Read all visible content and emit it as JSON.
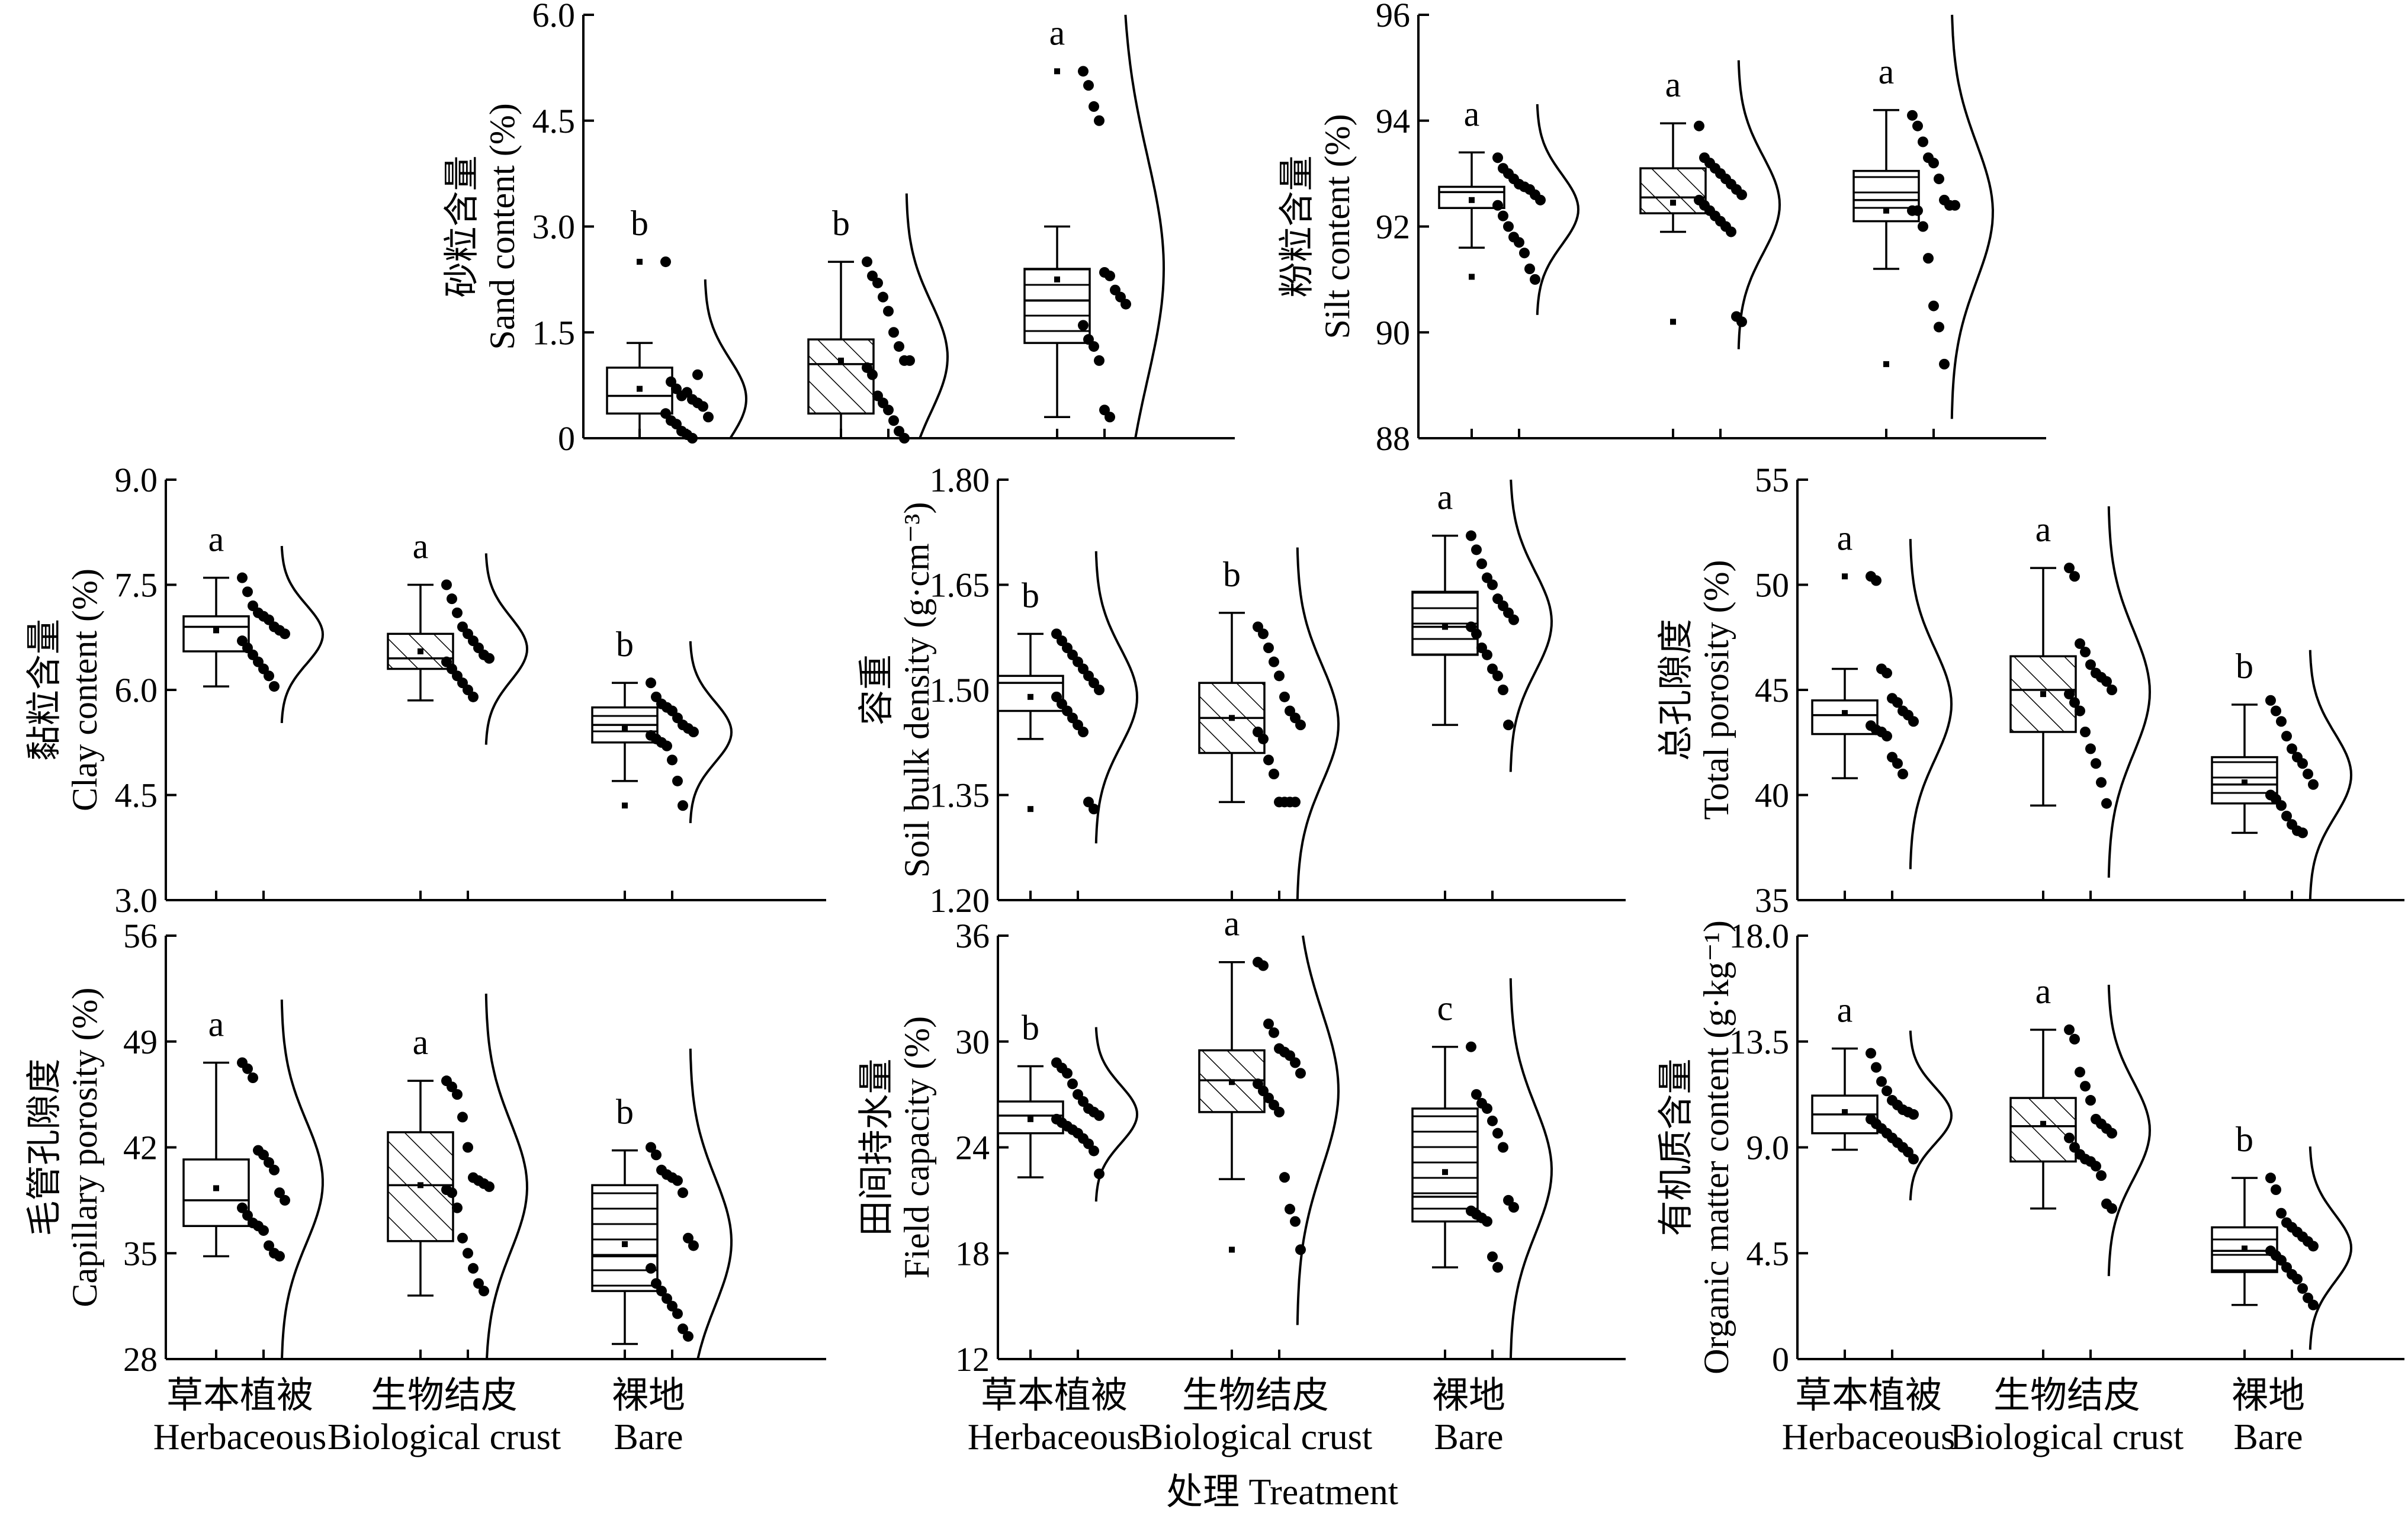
{
  "figure": {
    "xlabel": "处理 Treatment",
    "groups": [
      {
        "zh": "草本植被",
        "en": "Herbaceous",
        "fill": "none"
      },
      {
        "zh": "生物结皮",
        "en": "Biological crust",
        "fill": "diagonal"
      },
      {
        "zh": "裸地",
        "en": "Bare",
        "fill": "horizontal"
      }
    ]
  },
  "chart_data": [
    {
      "id": "sand",
      "type": "box",
      "ylabel_zh": "砂粒含量",
      "ylabel_en": "Sand content (%)",
      "ylim": [
        0,
        6.0
      ],
      "yticks": [
        "0",
        "1.5",
        "3.0",
        "4.5",
        "6.0"
      ],
      "categories": [
        "Herbaceous",
        "Biological crust",
        "Bare"
      ],
      "boxes": [
        {
          "whisker_low": 0.0,
          "q1": 0.35,
          "median": 0.6,
          "q3": 1.0,
          "whisker_high": 1.35,
          "mean": 0.7,
          "outliers": [
            2.5
          ]
        },
        {
          "whisker_low": 0.0,
          "q1": 0.35,
          "median": 1.05,
          "q3": 1.4,
          "whisker_high": 2.5,
          "mean": 1.1,
          "outliers": []
        },
        {
          "whisker_low": 0.3,
          "q1": 1.35,
          "median": 1.95,
          "q3": 2.4,
          "whisker_high": 3.0,
          "mean": 2.25,
          "outliers": [
            5.2
          ]
        }
      ],
      "points": [
        [
          2.5,
          0.8,
          0.7,
          0.6,
          0.65,
          0.55,
          0.5,
          0.45,
          0.3,
          0.35,
          0.25,
          0.2,
          0.1,
          0.05,
          0.0,
          0.9
        ],
        [
          2.5,
          2.3,
          2.2,
          2.0,
          1.8,
          1.5,
          1.3,
          1.1,
          1.1,
          1.0,
          0.9,
          0.6,
          0.5,
          0.4,
          0.25,
          0.1,
          0.0
        ],
        [
          5.2,
          5.0,
          4.7,
          4.5,
          2.35,
          2.3,
          2.1,
          2.0,
          1.9,
          1.6,
          1.4,
          1.3,
          1.1,
          0.4,
          0.3
        ]
      ],
      "letters": [
        "b",
        "b",
        "a"
      ]
    },
    {
      "id": "silt",
      "type": "box",
      "ylabel_zh": "粉粒含量",
      "ylabel_en": "Silt content (%)",
      "ylim": [
        88,
        96
      ],
      "yticks": [
        "88",
        "90",
        "92",
        "94",
        "96"
      ],
      "categories": [
        "Herbaceous",
        "Biological crust",
        "Bare"
      ],
      "boxes": [
        {
          "whisker_low": 91.6,
          "q1": 92.35,
          "median": 92.65,
          "q3": 92.75,
          "whisker_high": 93.4,
          "mean": 92.5,
          "outliers": [
            91.05
          ]
        },
        {
          "whisker_low": 91.9,
          "q1": 92.25,
          "median": 92.55,
          "q3": 93.1,
          "whisker_high": 93.95,
          "mean": 92.45,
          "outliers": [
            90.2
          ]
        },
        {
          "whisker_low": 91.2,
          "q1": 92.1,
          "median": 92.5,
          "q3": 93.05,
          "whisker_high": 94.2,
          "mean": 92.3,
          "outliers": [
            89.4
          ]
        }
      ],
      "points": [
        [
          93.3,
          93.1,
          93.0,
          92.9,
          92.8,
          92.75,
          92.7,
          92.6,
          92.5,
          92.4,
          92.2,
          92.0,
          91.8,
          91.7,
          91.5,
          91.2,
          91.0
        ],
        [
          93.9,
          93.3,
          93.2,
          93.1,
          93.0,
          92.9,
          92.8,
          92.7,
          92.6,
          92.5,
          92.4,
          92.3,
          92.2,
          92.1,
          92.0,
          91.9,
          90.3,
          90.2
        ],
        [
          94.1,
          93.9,
          93.6,
          93.3,
          93.2,
          92.9,
          92.5,
          92.4,
          92.4,
          92.3,
          92.3,
          92.0,
          91.4,
          90.5,
          90.1,
          89.4
        ]
      ],
      "letters": [
        "a",
        "a",
        "a"
      ]
    },
    {
      "id": "clay",
      "type": "box",
      "ylabel_zh": "黏粒含量",
      "ylabel_en": "Clay content (%)",
      "ylim": [
        3.0,
        9.0
      ],
      "yticks": [
        "3.0",
        "4.5",
        "6.0",
        "7.5",
        "9.0"
      ],
      "categories": [
        "Herbaceous",
        "Biological crust",
        "Bare"
      ],
      "boxes": [
        {
          "whisker_low": 6.05,
          "q1": 6.55,
          "median": 6.9,
          "q3": 7.05,
          "whisker_high": 7.6,
          "mean": 6.85,
          "outliers": []
        },
        {
          "whisker_low": 5.85,
          "q1": 6.3,
          "median": 6.45,
          "q3": 6.8,
          "whisker_high": 7.5,
          "mean": 6.55,
          "outliers": []
        },
        {
          "whisker_low": 4.7,
          "q1": 5.25,
          "median": 5.5,
          "q3": 5.75,
          "whisker_high": 6.1,
          "mean": 5.45,
          "outliers": [
            4.35
          ]
        }
      ],
      "points": [
        [
          7.6,
          7.4,
          7.2,
          7.1,
          7.05,
          7.0,
          6.9,
          6.85,
          6.8,
          6.7,
          6.6,
          6.5,
          6.4,
          6.3,
          6.2,
          6.05
        ],
        [
          7.5,
          7.3,
          7.1,
          6.9,
          6.8,
          6.7,
          6.6,
          6.5,
          6.45,
          6.4,
          6.3,
          6.2,
          6.1,
          6.0,
          5.9
        ],
        [
          6.1,
          5.9,
          5.8,
          5.75,
          5.7,
          5.6,
          5.5,
          5.45,
          5.4,
          5.35,
          5.3,
          5.25,
          5.2,
          5.0,
          4.7,
          4.35
        ]
      ],
      "letters": [
        "a",
        "a",
        "b"
      ]
    },
    {
      "id": "bulk",
      "type": "box",
      "ylabel_zh": "容重",
      "ylabel_en": "Soil bulk density (g·cm⁻³)",
      "ylim": [
        1.2,
        1.8
      ],
      "yticks": [
        "1.20",
        "1.35",
        "1.50",
        "1.65",
        "1.80"
      ],
      "categories": [
        "Herbaceous",
        "Biological crust",
        "Bare"
      ],
      "boxes": [
        {
          "whisker_low": 1.43,
          "q1": 1.47,
          "median": 1.51,
          "q3": 1.52,
          "whisker_high": 1.58,
          "mean": 1.49,
          "outliers": [
            1.33
          ]
        },
        {
          "whisker_low": 1.34,
          "q1": 1.41,
          "median": 1.46,
          "q3": 1.51,
          "whisker_high": 1.61,
          "mean": 1.46,
          "outliers": []
        },
        {
          "whisker_low": 1.45,
          "q1": 1.55,
          "median": 1.59,
          "q3": 1.64,
          "whisker_high": 1.72,
          "mean": 1.59,
          "outliers": []
        }
      ],
      "points": [
        [
          1.58,
          1.57,
          1.56,
          1.55,
          1.54,
          1.53,
          1.52,
          1.51,
          1.5,
          1.49,
          1.48,
          1.47,
          1.46,
          1.45,
          1.44,
          1.34,
          1.33
        ],
        [
          1.59,
          1.58,
          1.56,
          1.54,
          1.52,
          1.49,
          1.47,
          1.46,
          1.45,
          1.44,
          1.43,
          1.4,
          1.38,
          1.34,
          1.34,
          1.34,
          1.34
        ],
        [
          1.72,
          1.7,
          1.68,
          1.66,
          1.65,
          1.63,
          1.62,
          1.61,
          1.6,
          1.59,
          1.58,
          1.56,
          1.55,
          1.53,
          1.52,
          1.5,
          1.45
        ]
      ],
      "letters": [
        "b",
        "b",
        "a"
      ]
    },
    {
      "id": "total",
      "type": "box",
      "ylabel_zh": "总孔隙度",
      "ylabel_en": "Total porosity (%)",
      "ylim": [
        35,
        55
      ],
      "yticks": [
        "35",
        "40",
        "45",
        "50",
        "55"
      ],
      "categories": [
        "Herbaceous",
        "Biological crust",
        "Bare"
      ],
      "boxes": [
        {
          "whisker_low": 40.8,
          "q1": 42.9,
          "median": 43.8,
          "q3": 44.5,
          "whisker_high": 46.0,
          "mean": 43.9,
          "outliers": [
            50.4
          ]
        },
        {
          "whisker_low": 39.5,
          "q1": 43.0,
          "median": 45.0,
          "q3": 46.6,
          "whisker_high": 50.8,
          "mean": 44.8,
          "outliers": []
        },
        {
          "whisker_low": 38.2,
          "q1": 39.6,
          "median": 40.5,
          "q3": 41.8,
          "whisker_high": 44.3,
          "mean": 40.6,
          "outliers": []
        }
      ],
      "points": [
        [
          50.4,
          50.2,
          46.0,
          45.8,
          44.6,
          44.4,
          44.0,
          43.8,
          43.5,
          43.3,
          43.1,
          43.0,
          42.8,
          41.8,
          41.5,
          41.0
        ],
        [
          50.8,
          50.4,
          47.2,
          46.8,
          46.2,
          45.8,
          45.6,
          45.4,
          45.0,
          44.8,
          44.4,
          44.0,
          43.0,
          42.2,
          41.5,
          40.6,
          39.6
        ],
        [
          44.5,
          44.0,
          43.5,
          42.8,
          42.2,
          41.8,
          41.5,
          41.0,
          40.5,
          40.0,
          39.8,
          39.5,
          39.0,
          38.6,
          38.3,
          38.2
        ]
      ],
      "letters": [
        "a",
        "a",
        "b"
      ]
    },
    {
      "id": "capillary",
      "type": "box",
      "ylabel_zh": "毛管孔隙度",
      "ylabel_en": "Capillary porosity (%)",
      "ylim": [
        28,
        56
      ],
      "yticks": [
        "28",
        "35",
        "42",
        "49",
        "56"
      ],
      "categories": [
        "Herbaceous",
        "Biological crust",
        "Bare"
      ],
      "boxes": [
        {
          "whisker_low": 34.8,
          "q1": 36.8,
          "median": 38.5,
          "q3": 41.2,
          "whisker_high": 47.6,
          "mean": 39.3,
          "outliers": []
        },
        {
          "whisker_low": 32.2,
          "q1": 35.8,
          "median": 39.5,
          "q3": 43.0,
          "whisker_high": 46.4,
          "mean": 39.5,
          "outliers": []
        },
        {
          "whisker_low": 29.0,
          "q1": 32.5,
          "median": 34.8,
          "q3": 39.5,
          "whisker_high": 41.8,
          "mean": 35.6,
          "outliers": []
        }
      ],
      "points": [
        [
          47.6,
          47.2,
          46.6,
          41.8,
          41.5,
          41.0,
          40.5,
          39.0,
          38.5,
          38.0,
          37.5,
          37.0,
          36.8,
          36.5,
          35.5,
          35.0,
          34.8
        ],
        [
          46.4,
          46.0,
          45.5,
          44.0,
          42.0,
          40.0,
          39.8,
          39.6,
          39.4,
          39.2,
          39.0,
          38.0,
          36.0,
          35.0,
          34.0,
          33.0,
          32.5
        ],
        [
          42.0,
          41.5,
          40.5,
          40.2,
          40.0,
          39.8,
          39.0,
          36.0,
          35.5,
          34.0,
          33.0,
          32.5,
          32.0,
          31.5,
          31.0,
          30.0,
          29.5
        ]
      ],
      "letters": [
        "a",
        "a",
        "b"
      ]
    },
    {
      "id": "field",
      "type": "box",
      "ylabel_zh": "田间持水量",
      "ylabel_en": "Field capacity (%)",
      "ylim": [
        12,
        36
      ],
      "yticks": [
        "12",
        "18",
        "24",
        "30",
        "36"
      ],
      "categories": [
        "Herbaceous",
        "Biological crust",
        "Bare"
      ],
      "boxes": [
        {
          "whisker_low": 22.3,
          "q1": 24.8,
          "median": 25.8,
          "q3": 26.6,
          "whisker_high": 28.6,
          "mean": 25.6,
          "outliers": []
        },
        {
          "whisker_low": 22.2,
          "q1": 26.0,
          "median": 27.8,
          "q3": 29.5,
          "whisker_high": 34.5,
          "mean": 27.7,
          "outliers": [
            18.2
          ]
        },
        {
          "whisker_low": 17.2,
          "q1": 19.8,
          "median": 21.2,
          "q3": 26.2,
          "whisker_high": 29.7,
          "mean": 22.6,
          "outliers": []
        }
      ],
      "points": [
        [
          28.8,
          28.5,
          28.2,
          27.6,
          27.0,
          26.6,
          26.2,
          26.0,
          25.8,
          25.6,
          25.4,
          25.2,
          25.0,
          24.8,
          24.5,
          24.2,
          23.8,
          22.5
        ],
        [
          34.5,
          34.3,
          31.0,
          30.5,
          29.6,
          29.4,
          29.2,
          28.8,
          28.2,
          27.6,
          27.2,
          26.8,
          26.4,
          26.0,
          22.3,
          20.5,
          19.8,
          18.2
        ],
        [
          29.7,
          27.0,
          26.5,
          26.2,
          25.5,
          24.8,
          24.0,
          21.0,
          20.6,
          20.4,
          20.2,
          20.0,
          19.8,
          17.8,
          17.2
        ]
      ],
      "letters": [
        "b",
        "a",
        "c"
      ]
    },
    {
      "id": "organic",
      "type": "box",
      "ylabel_zh": "有机质含量",
      "ylabel_en": "Organic matter content (g·kg⁻¹)",
      "ylim": [
        0,
        18.0
      ],
      "yticks": [
        "0",
        "4.5",
        "9.0",
        "13.5",
        "18.0"
      ],
      "categories": [
        "Herbaceous",
        "Biological crust",
        "Bare"
      ],
      "boxes": [
        {
          "whisker_low": 8.9,
          "q1": 9.6,
          "median": 10.4,
          "q3": 11.2,
          "whisker_high": 13.2,
          "mean": 10.5,
          "outliers": []
        },
        {
          "whisker_low": 6.4,
          "q1": 8.4,
          "median": 9.9,
          "q3": 11.1,
          "whisker_high": 14.0,
          "mean": 10.0,
          "outliers": []
        },
        {
          "whisker_low": 2.3,
          "q1": 3.7,
          "median": 4.6,
          "q3": 5.6,
          "whisker_high": 7.7,
          "mean": 4.7,
          "outliers": []
        }
      ],
      "points": [
        [
          13.0,
          12.4,
          11.8,
          11.4,
          11.0,
          10.8,
          10.6,
          10.5,
          10.4,
          10.2,
          10.0,
          9.8,
          9.6,
          9.4,
          9.2,
          9.0,
          8.8,
          8.5
        ],
        [
          14.0,
          13.6,
          12.2,
          11.6,
          11.0,
          10.2,
          10.0,
          9.8,
          9.6,
          9.4,
          9.0,
          8.7,
          8.5,
          8.4,
          8.2,
          7.8,
          6.6,
          6.4
        ],
        [
          7.7,
          7.2,
          6.2,
          5.8,
          5.6,
          5.4,
          5.2,
          5.0,
          4.8,
          4.6,
          4.4,
          4.2,
          3.9,
          3.6,
          3.4,
          3.0,
          2.6,
          2.3
        ]
      ],
      "letters": [
        "a",
        "a",
        "b"
      ]
    }
  ]
}
